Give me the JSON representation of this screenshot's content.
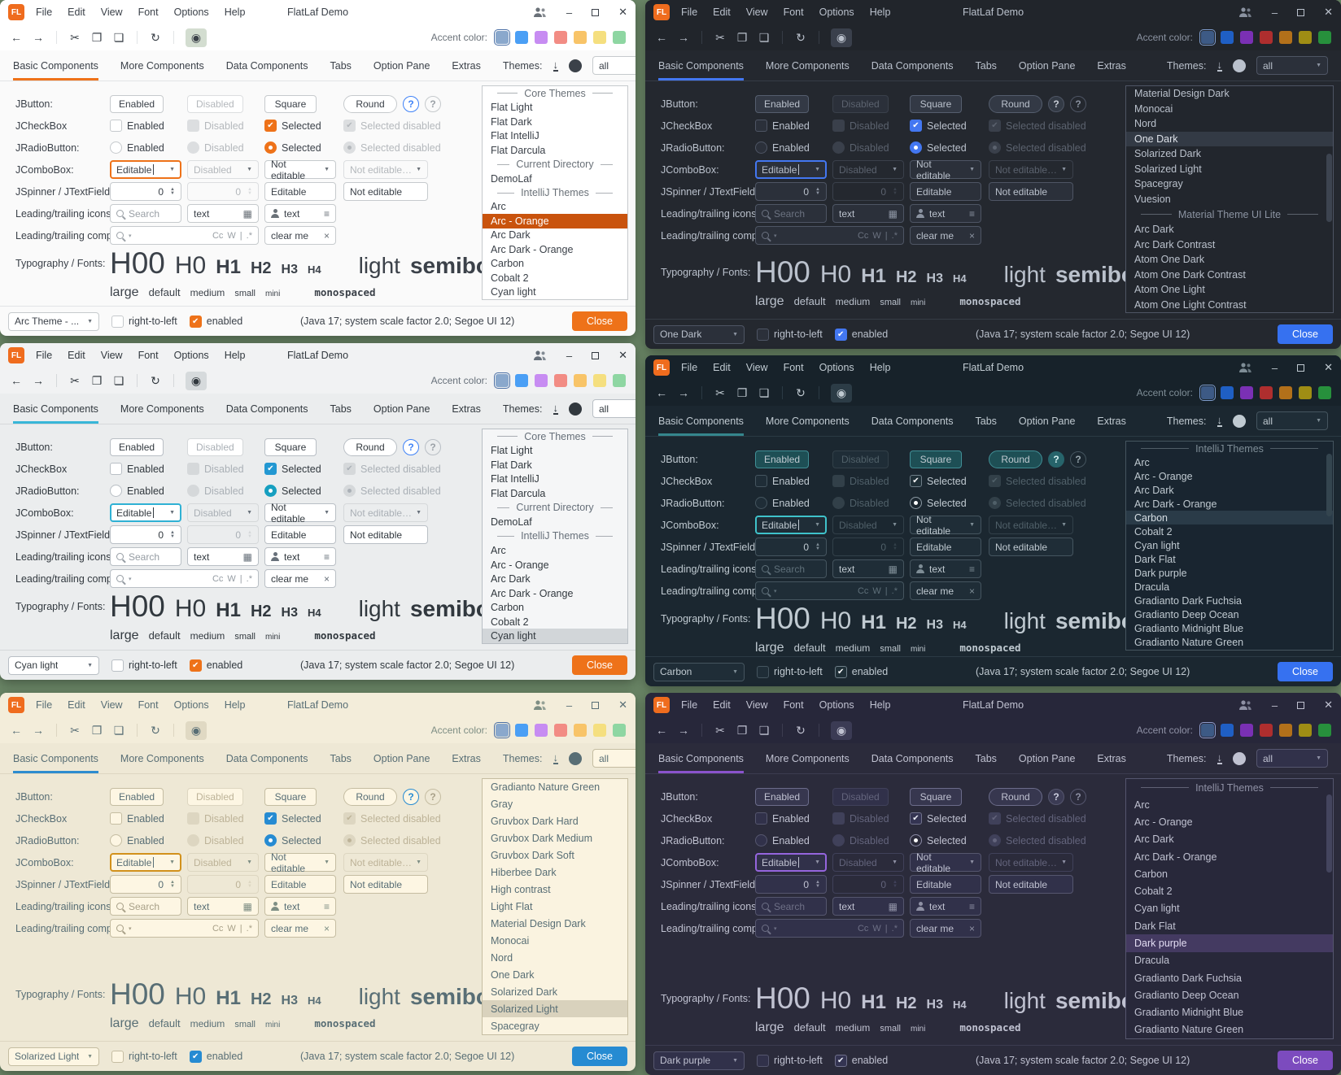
{
  "colors": {
    "desktop": "#6b8767",
    "swatches": {
      "light": [
        "#8aa8cc",
        "#4a9ff5",
        "#c78cf2",
        "#f28c84",
        "#f8c468",
        "#f5df7f",
        "#8ed6a2"
      ],
      "dark": [
        "#3d5a85",
        "#1f5fc4",
        "#7a30b4",
        "#ae2e2e",
        "#b2701a",
        "#9f8d14",
        "#27903c"
      ]
    },
    "logo_bg": "#ef6c1e"
  },
  "shared": {
    "logo": "FL",
    "title": "FlatLaf Demo",
    "menu": [
      "File",
      "Edit",
      "View",
      "Font",
      "Options",
      "Help"
    ],
    "accent_label": "Accent color:",
    "tabs": [
      "Basic Components",
      "More Components",
      "Data Components",
      "Tabs",
      "Option Pane",
      "Extras"
    ],
    "header": {
      "themes_label": "Themes:",
      "filter": "all"
    },
    "ic": {
      "back": "←",
      "forward": "→",
      "cut": "✂",
      "copy": "❐",
      "paste": "❏",
      "refresh": "↻",
      "eye": "◉",
      "download": "↓",
      "minimize": "–",
      "close": "✕",
      "arrow": "▼",
      "up": "▲",
      "down": "▼",
      "table": "▦",
      "list": "≡",
      "clear": "×",
      "search_arrow": "▾",
      "check": "✔",
      "help": "?"
    },
    "rows": {
      "jbutton": {
        "label": "JButton:",
        "enabled": "Enabled",
        "disabled": "Disabled",
        "square": "Square",
        "round": "Round"
      },
      "jcheckbox": {
        "label": "JCheckBox",
        "enabled": "Enabled",
        "disabled": "Disabled",
        "selected": "Selected",
        "selected_disabled": "Selected disabled"
      },
      "jradio": {
        "label": "JRadioButton:",
        "enabled": "Enabled",
        "disabled": "Disabled",
        "selected": "Selected",
        "selected_disabled": "Selected disabled"
      },
      "jcombo": {
        "label": "JComboBox:",
        "editable": "Editable",
        "disabled": "Disabled",
        "not_editable": "Not editable",
        "not_editable_dis": "Not editable dis..."
      },
      "jspinner": {
        "label": "JSpinner / JTextField:",
        "value": "0",
        "value2": "0",
        "editable": "Editable",
        "not_editable": "Not editable"
      },
      "icons_row": {
        "label": "Leading/trailing icons:",
        "search_placeholder": "Search",
        "text": "text"
      },
      "comp_row": {
        "label": "Leading/trailing comp.:",
        "match_case": "Cc",
        "whole_word": "W",
        "divider": "|",
        "regex": ".*",
        "clear_text": "clear me"
      },
      "typo": {
        "label": "Typography / Fonts:",
        "h": [
          "H00",
          "H0",
          "H1",
          "H2",
          "H3",
          "H4"
        ],
        "light": "light",
        "semibold": "semibold",
        "sizes": [
          "large",
          "default",
          "medium",
          "small",
          "mini"
        ],
        "monospaced": "monospaced"
      }
    },
    "status": {
      "rtl": "right-to-left",
      "enabled": "enabled",
      "info": "(Java 17;  system scale factor 2.0; Segoe UI 12)",
      "close": "Close"
    }
  },
  "windows": [
    {
      "css": "t-arc",
      "col": "col-l",
      "palette": "light",
      "theme_combo": "Arc Theme - ...",
      "list": [
        {
          "t": "Core Themes",
          "h": true
        },
        {
          "t": "Flat Light"
        },
        {
          "t": "Flat Dark"
        },
        {
          "t": "Flat IntelliJ"
        },
        {
          "t": "Flat Darcula"
        },
        {
          "t": "Current Directory",
          "h": true
        },
        {
          "t": "DemoLaf"
        },
        {
          "t": "IntelliJ Themes",
          "h": true
        },
        {
          "t": "Arc"
        },
        {
          "t": "Arc - Orange",
          "sel": true
        },
        {
          "t": "Arc Dark"
        },
        {
          "t": "Arc Dark - Orange"
        },
        {
          "t": "Carbon"
        },
        {
          "t": "Cobalt 2"
        },
        {
          "t": "Cyan light"
        }
      ]
    },
    {
      "css": "t-onedark",
      "col": "col-r",
      "palette": "dark",
      "theme_combo": "One Dark",
      "list": [
        {
          "t": "Material Design Dark"
        },
        {
          "t": "Monocai"
        },
        {
          "t": "Nord"
        },
        {
          "t": "One Dark",
          "sel": true
        },
        {
          "t": "Solarized Dark"
        },
        {
          "t": "Solarized Light"
        },
        {
          "t": "Spacegray"
        },
        {
          "t": "Vuesion"
        },
        {
          "t": "Material Theme UI Lite",
          "h": true
        },
        {
          "t": "Arc Dark"
        },
        {
          "t": "Arc Dark Contrast"
        },
        {
          "t": "Atom One Dark"
        },
        {
          "t": "Atom One Dark Contrast"
        },
        {
          "t": "Atom One Light"
        },
        {
          "t": "Atom One Light Contrast"
        }
      ]
    },
    {
      "css": "t-cyan",
      "col": "col-l",
      "palette": "light",
      "theme_combo": "Cyan light",
      "list": [
        {
          "t": "Core Themes",
          "h": true
        },
        {
          "t": "Flat Light"
        },
        {
          "t": "Flat Dark"
        },
        {
          "t": "Flat IntelliJ"
        },
        {
          "t": "Flat Darcula"
        },
        {
          "t": "Current Directory",
          "h": true
        },
        {
          "t": "DemoLaf"
        },
        {
          "t": "IntelliJ Themes",
          "h": true
        },
        {
          "t": "Arc"
        },
        {
          "t": "Arc - Orange"
        },
        {
          "t": "Arc Dark"
        },
        {
          "t": "Arc Dark - Orange"
        },
        {
          "t": "Carbon"
        },
        {
          "t": "Cobalt 2"
        },
        {
          "t": "Cyan light",
          "sel": true
        }
      ]
    },
    {
      "css": "t-carbon",
      "col": "col-r",
      "palette": "dark",
      "theme_combo": "Carbon",
      "list": [
        {
          "t": "IntelliJ Themes",
          "h": true
        },
        {
          "t": "Arc"
        },
        {
          "t": "Arc - Orange"
        },
        {
          "t": "Arc Dark"
        },
        {
          "t": "Arc Dark - Orange"
        },
        {
          "t": "Carbon",
          "sel": true
        },
        {
          "t": "Cobalt 2"
        },
        {
          "t": "Cyan light"
        },
        {
          "t": "Dark Flat"
        },
        {
          "t": "Dark purple"
        },
        {
          "t": "Dracula"
        },
        {
          "t": "Gradianto Dark Fuchsia"
        },
        {
          "t": "Gradianto Deep Ocean"
        },
        {
          "t": "Gradianto Midnight Blue"
        },
        {
          "t": "Gradianto Nature Green"
        }
      ]
    },
    {
      "css": "t-sol",
      "col": "col-l",
      "palette": "light",
      "theme_combo": "Solarized Light",
      "list": [
        {
          "t": "Gradianto Nature Green"
        },
        {
          "t": "Gray"
        },
        {
          "t": "Gruvbox Dark Hard"
        },
        {
          "t": "Gruvbox Dark Medium"
        },
        {
          "t": "Gruvbox Dark Soft"
        },
        {
          "t": "Hiberbee Dark"
        },
        {
          "t": "High contrast"
        },
        {
          "t": "Light Flat"
        },
        {
          "t": "Material Design Dark"
        },
        {
          "t": "Monocai"
        },
        {
          "t": "Nord"
        },
        {
          "t": "One Dark"
        },
        {
          "t": "Solarized Dark"
        },
        {
          "t": "Solarized Light",
          "sel": true
        },
        {
          "t": "Spacegray"
        }
      ]
    },
    {
      "css": "t-purple",
      "col": "col-r",
      "palette": "dark",
      "theme_combo": "Dark purple",
      "list": [
        {
          "t": "IntelliJ Themes",
          "h": true
        },
        {
          "t": "Arc"
        },
        {
          "t": "Arc - Orange"
        },
        {
          "t": "Arc Dark"
        },
        {
          "t": "Arc Dark - Orange"
        },
        {
          "t": "Carbon"
        },
        {
          "t": "Cobalt 2"
        },
        {
          "t": "Cyan light"
        },
        {
          "t": "Dark Flat"
        },
        {
          "t": "Dark purple",
          "sel": true
        },
        {
          "t": "Dracula"
        },
        {
          "t": "Gradianto Dark Fuchsia"
        },
        {
          "t": "Gradianto Deep Ocean"
        },
        {
          "t": "Gradianto Midnight Blue"
        },
        {
          "t": "Gradianto Nature Green"
        }
      ]
    }
  ]
}
